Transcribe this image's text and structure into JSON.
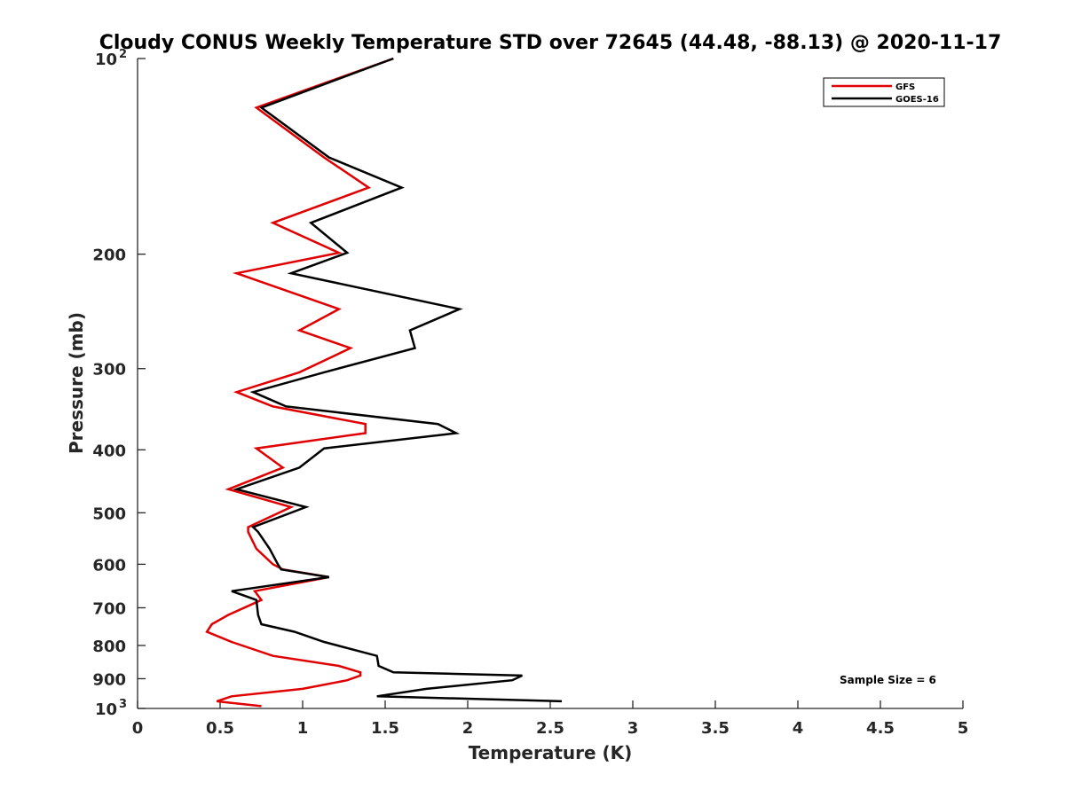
{
  "chart_data": {
    "type": "line",
    "title": "Cloudy CONUS Weekly Temperature STD over 72645 (44.48, -88.13) @ 2020-11-17",
    "xlabel": "Temperature (K)",
    "ylabel": "Pressure (mb)",
    "xlim": [
      0,
      5
    ],
    "ylim": [
      100,
      1000
    ],
    "y_scale": "log",
    "y_reversed": true,
    "grid": false,
    "legend_position": "top-right",
    "x_ticks": [
      "0",
      "0.5",
      "1",
      "1.5",
      "2",
      "2.5",
      "3",
      "3.5",
      "4",
      "4.5",
      "5"
    ],
    "y_ticks": [
      {
        "value": 100,
        "base": "10",
        "exp": "2"
      },
      {
        "value": 200,
        "label": "200"
      },
      {
        "value": 300,
        "label": "300"
      },
      {
        "value": 400,
        "label": "400"
      },
      {
        "value": 500,
        "label": "500"
      },
      {
        "value": 600,
        "label": "600"
      },
      {
        "value": 700,
        "label": "700"
      },
      {
        "value": 800,
        "label": "800"
      },
      {
        "value": 900,
        "label": "900"
      },
      {
        "value": 1000,
        "base": "10",
        "exp": "3"
      }
    ],
    "annotation": "Sample Size = 6",
    "series": [
      {
        "name": "GFS",
        "color": "#e00000",
        "points": [
          [
            1.55,
            100
          ],
          [
            0.72,
            119
          ],
          [
            1.13,
            142
          ],
          [
            1.4,
            158
          ],
          [
            0.82,
            179
          ],
          [
            1.22,
            199
          ],
          [
            0.6,
            214
          ],
          [
            1.22,
            243
          ],
          [
            0.98,
            262
          ],
          [
            1.29,
            279
          ],
          [
            0.98,
            304
          ],
          [
            0.6,
            326
          ],
          [
            0.82,
            343
          ],
          [
            1.38,
            365
          ],
          [
            1.38,
            377
          ],
          [
            0.72,
            398
          ],
          [
            0.88,
            426
          ],
          [
            0.55,
            460
          ],
          [
            0.93,
            490
          ],
          [
            0.67,
            526
          ],
          [
            0.67,
            535
          ],
          [
            0.72,
            568
          ],
          [
            0.82,
            600
          ],
          [
            0.88,
            611
          ],
          [
            1.16,
            628
          ],
          [
            0.71,
            660
          ],
          [
            0.75,
            681
          ],
          [
            0.55,
            718
          ],
          [
            0.45,
            742
          ],
          [
            0.42,
            762
          ],
          [
            0.57,
            790
          ],
          [
            0.82,
            830
          ],
          [
            1.22,
            860
          ],
          [
            1.35,
            880
          ],
          [
            1.35,
            890
          ],
          [
            1.27,
            905
          ],
          [
            1.0,
            933
          ],
          [
            0.57,
            958
          ],
          [
            0.48,
            975
          ],
          [
            0.75,
            992
          ]
        ]
      },
      {
        "name": "GOES-16",
        "color": "#000000",
        "points": [
          [
            1.55,
            100
          ],
          [
            0.75,
            119
          ],
          [
            1.16,
            142
          ],
          [
            1.6,
            158
          ],
          [
            1.05,
            179
          ],
          [
            1.27,
            199
          ],
          [
            0.93,
            214
          ],
          [
            1.95,
            243
          ],
          [
            1.65,
            262
          ],
          [
            1.68,
            279
          ],
          [
            1.13,
            304
          ],
          [
            0.7,
            326
          ],
          [
            0.9,
            343
          ],
          [
            1.82,
            365
          ],
          [
            1.93,
            377
          ],
          [
            1.13,
            398
          ],
          [
            0.98,
            426
          ],
          [
            0.6,
            460
          ],
          [
            1.02,
            490
          ],
          [
            0.7,
            526
          ],
          [
            0.73,
            535
          ],
          [
            0.8,
            568
          ],
          [
            0.85,
            600
          ],
          [
            0.87,
            611
          ],
          [
            1.16,
            628
          ],
          [
            0.57,
            660
          ],
          [
            0.72,
            681
          ],
          [
            0.73,
            718
          ],
          [
            0.75,
            742
          ],
          [
            0.95,
            762
          ],
          [
            1.13,
            790
          ],
          [
            1.45,
            830
          ],
          [
            1.46,
            860
          ],
          [
            1.55,
            880
          ],
          [
            2.33,
            890
          ],
          [
            2.27,
            905
          ],
          [
            1.75,
            933
          ],
          [
            1.45,
            958
          ],
          [
            2.57,
            975
          ]
        ]
      }
    ]
  }
}
